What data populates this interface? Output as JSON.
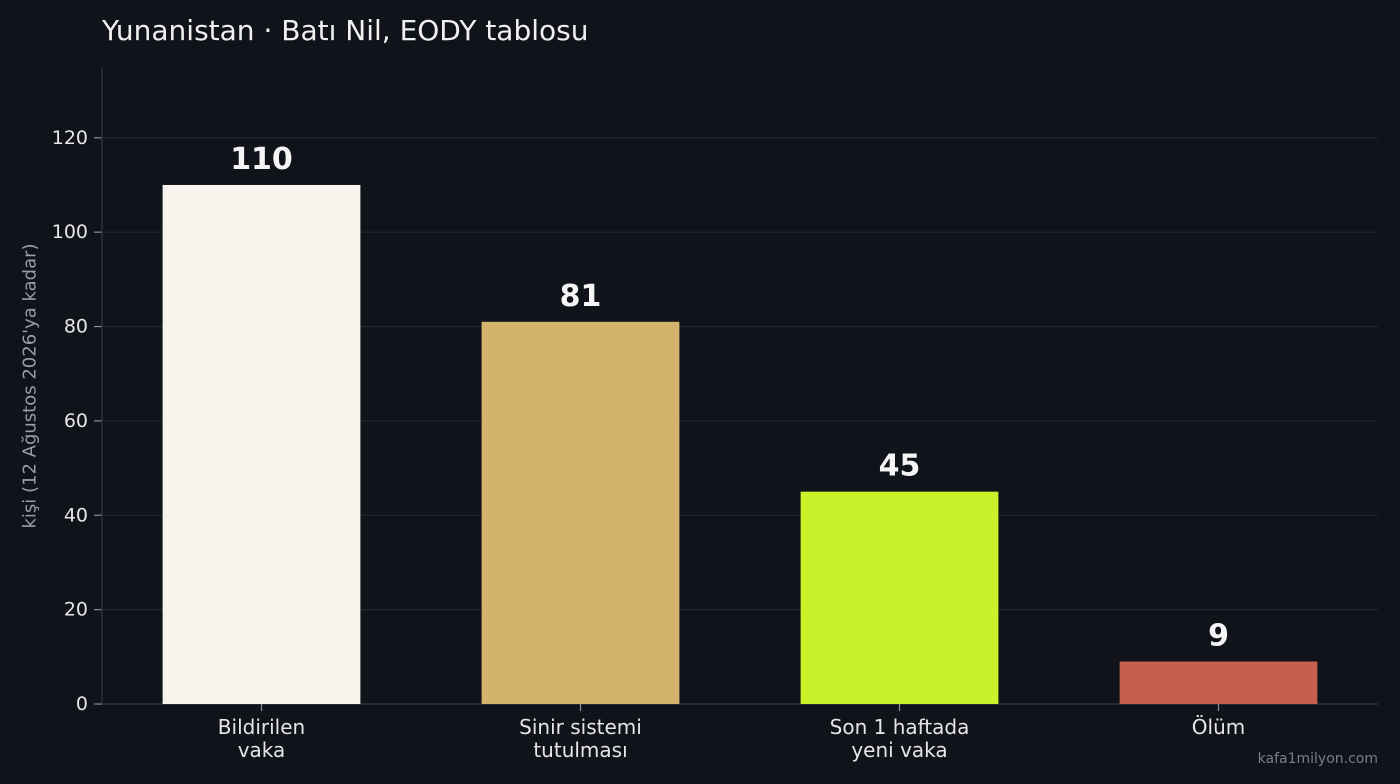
{
  "chart_data": {
    "type": "bar",
    "title": "Yunanistan · Batı Nil, EODY tablosu",
    "ylabel": "kişi (12 Ağustos 2026'ya kadar)",
    "xlabel": "",
    "categories": [
      [
        "Bildirilen",
        "vaka"
      ],
      [
        "Sinir sistemi",
        "tutulması"
      ],
      [
        "Son 1 haftada",
        "yeni vaka"
      ],
      [
        "Ölüm"
      ]
    ],
    "values": [
      110,
      81,
      45,
      9
    ],
    "colors": [
      "#f7f4ee",
      "#d4b36c",
      "#c9f22a",
      "#c65f4b"
    ],
    "ylim": [
      0,
      135
    ],
    "yticks": [
      0,
      20,
      40,
      60,
      80,
      100,
      120
    ],
    "grid": true
  },
  "watermark": "kafa1milyon.com"
}
